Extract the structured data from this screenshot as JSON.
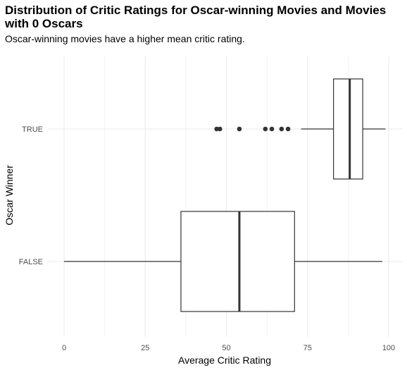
{
  "chart_data": {
    "type": "boxplot",
    "orientation": "horizontal",
    "title": "Distribution of Critic Ratings for Oscar-winning Movies and Movies with 0 Oscars",
    "subtitle": "Oscar-winning movies have a higher mean critic rating.",
    "xlabel": "Average Critic Rating",
    "ylabel": "Oscar Winner",
    "xlim": [
      0,
      100
    ],
    "x_ticks": [
      "0",
      "25",
      "50",
      "75",
      "100"
    ],
    "categories": [
      "FALSE",
      "TRUE"
    ],
    "boxes": [
      {
        "category": "FALSE",
        "whisker_low": 0,
        "q1": 36,
        "median": 54,
        "q3": 71,
        "whisker_high": 98,
        "outliers": []
      },
      {
        "category": "TRUE",
        "whisker_low": 73,
        "q1": 83,
        "median": 88,
        "q3": 92,
        "whisker_high": 99,
        "outliers": [
          47,
          48,
          54,
          62,
          64,
          67,
          69
        ]
      }
    ],
    "grid": true,
    "legend": "none",
    "colors": {
      "box_fill": "#ffffff",
      "stroke": "#333333",
      "grid": "#ebebeb",
      "tick_text": "#4d4d4d"
    }
  }
}
